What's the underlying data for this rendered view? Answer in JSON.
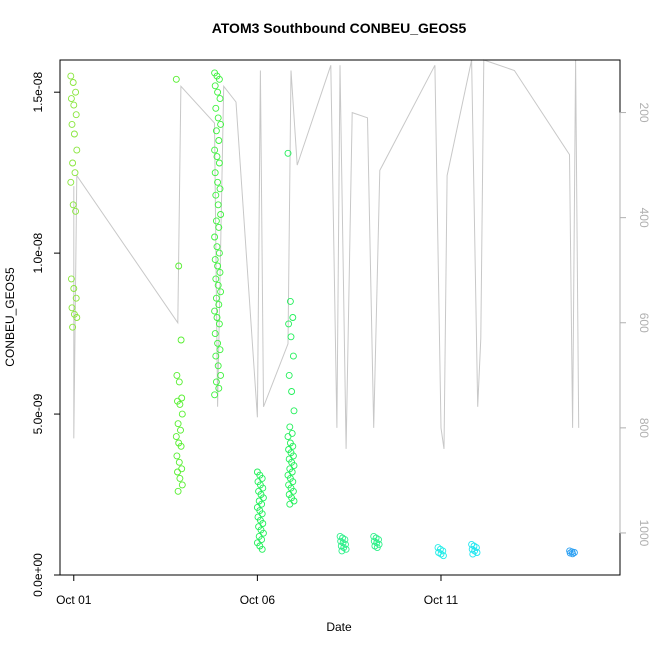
{
  "chart_data": {
    "type": "scatter",
    "title": "ATOM3 Southbound CONBEU_GEOS5",
    "xlabel": "Date",
    "ylabel": "CONBEU_GEOS5",
    "x_unit": "date",
    "xlim": [
      "2016-09-30T15:00",
      "2016-10-15T21:00"
    ],
    "ylim": [
      0,
      1.6e-08
    ],
    "yticks": [
      0,
      5e-09,
      1e-08,
      1.5e-08
    ],
    "ytick_labels": [
      "0.0e+00",
      "5.0e-09",
      "1.0e-08",
      "1.5e-08"
    ],
    "xticks": [
      "2016-10-01",
      "2016-10-06",
      "2016-10-11"
    ],
    "xtick_labels": [
      "Oct 01",
      "Oct 06",
      "Oct 11"
    ],
    "secondary_axis": {
      "side": "right",
      "reversed": true,
      "ylim": [
        1080,
        100
      ],
      "ticks": [
        200,
        400,
        600,
        800,
        1000
      ],
      "color": "#b0b0b0"
    },
    "grid": false,
    "legend": "none",
    "series": [
      {
        "marker": "open-circle",
        "clusters": [
          {
            "x": "2016-10-01T00:00",
            "values": [
              1.55e-08,
              1.53e-08,
              1.5e-08,
              1.48e-08,
              1.46e-08,
              1.43e-08,
              1.4e-08,
              1.37e-08,
              1.32e-08,
              1.28e-08,
              1.25e-08,
              1.22e-08,
              1.15e-08,
              1.13e-08,
              9.2e-09,
              8.9e-09,
              8.6e-09,
              8.3e-09,
              8.1e-09,
              8e-09,
              7.7e-09
            ],
            "color": "#88e63b"
          },
          {
            "x": "2016-10-03T21:00",
            "values": [
              1.54e-08,
              9.6e-09,
              7.3e-09,
              6.2e-09,
              6e-09,
              5.5e-09,
              5.4e-09,
              5.3e-09,
              5e-09,
              4.7e-09,
              4.5e-09,
              4.3e-09,
              4.1e-09,
              4e-09,
              3.7e-09,
              3.5e-09,
              3.3e-09,
              3.2e-09,
              3e-09,
              2.8e-09,
              2.6e-09
            ],
            "color": "#55ef2e"
          },
          {
            "x": "2016-10-04T22:00",
            "values": [
              1.56e-08,
              1.55e-08,
              1.54e-08,
              1.52e-08,
              1.5e-08,
              1.48e-08,
              1.45e-08,
              1.42e-08,
              1.4e-08,
              1.38e-08,
              1.35e-08,
              1.32e-08,
              1.3e-08,
              1.28e-08,
              1.25e-08,
              1.22e-08,
              1.2e-08,
              1.18e-08,
              1.15e-08,
              1.12e-08,
              1.1e-08,
              1.08e-08,
              1.05e-08,
              1.02e-08,
              1e-08,
              9.8e-09,
              9.6e-09,
              9.4e-09,
              9.2e-09,
              9e-09,
              8.8e-09,
              8.6e-09,
              8.4e-09,
              8.2e-09,
              8e-09,
              7.8e-09,
              7.5e-09,
              7.2e-09,
              7e-09,
              6.8e-09,
              6.5e-09,
              6.2e-09,
              6e-09,
              5.8e-09,
              5.6e-09
            ],
            "color": "#3cf23c"
          },
          {
            "x": "2016-10-06T02:00",
            "values": [
              3.2e-09,
              3.1e-09,
              3e-09,
              2.9e-09,
              2.8e-09,
              2.7e-09,
              2.6e-09,
              2.5e-09,
              2.4e-09,
              2.3e-09,
              2.2e-09,
              2.1e-09,
              2e-09,
              1.9e-09,
              1.8e-09,
              1.7e-09,
              1.6e-09,
              1.5e-09,
              1.4e-09,
              1.3e-09,
              1.2e-09,
              1.1e-09,
              1e-09,
              9e-10,
              8e-10
            ],
            "color": "#22f05a"
          },
          {
            "x": "2016-10-06T22:00",
            "values": [
              1.31e-08,
              8.5e-09,
              8e-09,
              7.8e-09,
              7.4e-09,
              6.8e-09,
              6.2e-09,
              5.7e-09,
              5.1e-09,
              4.6e-09,
              4.4e-09,
              4.3e-09,
              4.1e-09,
              4e-09,
              3.9e-09,
              3.8e-09,
              3.7e-09,
              3.6e-09,
              3.5e-09,
              3.4e-09,
              3.3e-09,
              3.2e-09,
              3.1e-09,
              3e-09,
              2.9e-09,
              2.8e-09,
              2.7e-09,
              2.6e-09,
              2.5e-09,
              2.4e-09,
              2.3e-09,
              2.2e-09
            ],
            "color": "#22f05a"
          },
          {
            "x": "2016-10-08T08:00",
            "values": [
              1.2e-09,
              1.15e-09,
              1.1e-09,
              1.05e-09,
              1e-09,
              9.5e-10,
              9e-10,
              8.5e-10,
              8e-10,
              7.5e-10
            ],
            "color": "#2ef08a"
          },
          {
            "x": "2016-10-09T06:00",
            "values": [
              1.2e-09,
              1.15e-09,
              1.1e-09,
              1.05e-09,
              1e-09,
              9.5e-10,
              9e-10,
              8.5e-10
            ],
            "color": "#2ef08a"
          },
          {
            "x": "2016-10-11T00:00",
            "values": [
              8.5e-10,
              8e-10,
              7.5e-10,
              7e-10,
              6.5e-10,
              6e-10
            ],
            "color": "#22ece8"
          },
          {
            "x": "2016-10-11T22:00",
            "values": [
              9.5e-10,
              9e-10,
              8.5e-10,
              8e-10,
              7.5e-10,
              7e-10,
              6.5e-10
            ],
            "color": "#22e6f0"
          },
          {
            "x": "2016-10-14T14:00",
            "values": [
              7.5e-10,
              7.2e-10,
              7e-10,
              6.8e-10,
              6.6e-10
            ],
            "color": "#2a9ff2"
          }
        ]
      }
    ],
    "pressure_trace": {
      "color": "#c8c8c8",
      "description_free": true
    }
  }
}
